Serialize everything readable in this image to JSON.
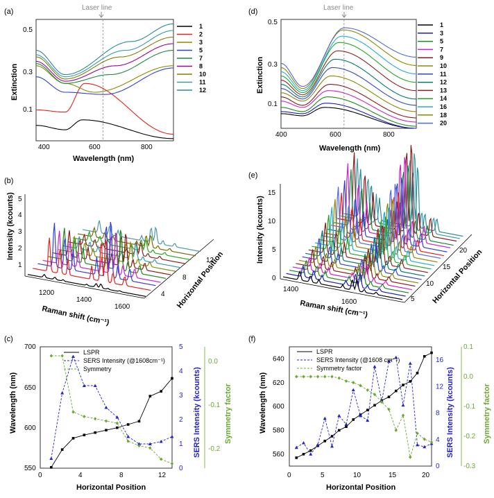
{
  "chart_data": [
    {
      "panel": "(a)",
      "type": "line",
      "xlabel": "Wavelength (nm)",
      "ylabel": "Extinction",
      "xticks": [
        "400",
        "600",
        "800"
      ],
      "yticks": [
        "0.1",
        "0.3",
        "0.5"
      ],
      "xlim": [
        380,
        900
      ],
      "ylim": [
        0,
        0.55
      ],
      "annotation": "Laser line",
      "laser_nm": 633,
      "legend": [
        "1",
        "2",
        "3",
        "5",
        "7",
        "8",
        "10",
        "11",
        "12"
      ],
      "colors": [
        "#000000",
        "#e8201c",
        "#8a8a00",
        "#2f3fd8",
        "#1a8a3a",
        "#9a009a",
        "#8a7a00",
        "#3a9aaa",
        "#2a8a9a"
      ],
      "dip_nm": [
        490,
        490,
        490,
        490,
        490,
        490,
        490,
        490,
        490
      ],
      "peak_nm": [
        555,
        565,
        600,
        640,
        660,
        680,
        700,
        720,
        740
      ],
      "peak": [
        0.095,
        0.26,
        0.22,
        0.21,
        0.3,
        0.34,
        0.38,
        0.41,
        0.45
      ],
      "dip": [
        0.05,
        0.13,
        0.26,
        0.22,
        0.26,
        0.27,
        0.28,
        0.29,
        0.3
      ],
      "start": [
        0.07,
        0.14,
        0.34,
        0.29,
        0.35,
        0.36,
        0.38,
        0.39,
        0.41
      ],
      "end": [
        0.01,
        0.03,
        0.34,
        0.33,
        0.41,
        0.44,
        0.47,
        0.5,
        0.53
      ]
    },
    {
      "panel": "(d)",
      "type": "line",
      "xlabel": "Wavelength (nm)",
      "ylabel": "Extinction",
      "xticks": [
        "400",
        "600",
        "800"
      ],
      "yticks": [
        "0.1",
        "0.3",
        "0.5"
      ],
      "xlim": [
        400,
        900
      ],
      "ylim": [
        0,
        0.52
      ],
      "annotation": "Laser line",
      "laser_nm": 633,
      "legend": [
        "1",
        "3",
        "5",
        "7",
        "9",
        "10",
        "11",
        "12",
        "13",
        "14",
        "16",
        "18",
        "20"
      ],
      "colors": [
        "#000000",
        "#1a1acc",
        "#1a8a1a",
        "#cc22cc",
        "#8a1a1a",
        "#8a8a00",
        "#3344cc",
        "#007a6a",
        "#8a2222",
        "#22aa22",
        "#22aadd",
        "#8a8a00",
        "#5566dd"
      ],
      "peak_nm": [
        560,
        565,
        570,
        575,
        580,
        585,
        590,
        600,
        610,
        615,
        625,
        630,
        635
      ],
      "peak": [
        0.1,
        0.12,
        0.15,
        0.18,
        0.21,
        0.25,
        0.29,
        0.33,
        0.37,
        0.41,
        0.44,
        0.47,
        0.48
      ],
      "dip": [
        0.06,
        0.07,
        0.08,
        0.1,
        0.11,
        0.13,
        0.14,
        0.15,
        0.16,
        0.17,
        0.18,
        0.19,
        0.2
      ],
      "start": [
        0.07,
        0.08,
        0.1,
        0.13,
        0.15,
        0.17,
        0.19,
        0.21,
        0.23,
        0.25,
        0.27,
        0.29,
        0.31
      ],
      "end": [
        0.0,
        0.0,
        0.01,
        0.03,
        0.05,
        0.08,
        0.11,
        0.14,
        0.18,
        0.22,
        0.26,
        0.3,
        0.34
      ]
    },
    {
      "panel": "(b)",
      "type": "line",
      "xlabel": "Raman shift (cm⁻¹)",
      "ylabel": "Intensity (kcounts)",
      "zlabel": "Horizontal Position",
      "xticks": [
        "1200",
        "1400",
        "1600"
      ],
      "yticks": [
        "1",
        "2",
        "3",
        "4",
        "5"
      ],
      "zticks": [
        "4",
        "8",
        "12"
      ],
      "series_count": 12,
      "colors": [
        "#000000",
        "#e8201c",
        "#2f3fd8",
        "#cc22cc",
        "#1a8a1a",
        "#8a1a1a",
        "#8a8a00",
        "#3a9aaa",
        "#8a2222",
        "#22aa22",
        "#7a6a00",
        "#4a9aaa"
      ],
      "peak_1608": [
        0.3,
        3.3,
        4.3,
        3.2,
        3.1,
        2.5,
        1.6,
        1.2,
        1.0,
        0.9,
        0.9,
        1.2
      ]
    },
    {
      "panel": "(e)",
      "type": "line",
      "xlabel": "Raman shift (cm⁻¹)",
      "ylabel": "Intensity (kcounts)",
      "zlabel": "Horizontal Position",
      "xticks": [
        "1400",
        "1600"
      ],
      "yticks": [
        "0",
        "5",
        "10",
        "15"
      ],
      "zticks": [
        "5",
        "10",
        "15",
        "20"
      ],
      "series_count": 20,
      "colors": [
        "#000000",
        "#1a1acc",
        "#1a8a1a",
        "#cc22cc",
        "#8a1a1a",
        "#8a8a00",
        "#3344cc",
        "#007a6a",
        "#8a2222",
        "#22aa22",
        "#22aadd",
        "#8a8a00",
        "#5566dd",
        "#e8201c",
        "#2f3fd8",
        "#cc22cc",
        "#1a8a3a",
        "#8a1a1a",
        "#3a9aaa",
        "#2a8a9a"
      ],
      "peak_1608": [
        2,
        2.5,
        3,
        3,
        4,
        4,
        5,
        6,
        7,
        8,
        9,
        10,
        12,
        10,
        12,
        15,
        13,
        16,
        14,
        11
      ]
    },
    {
      "panel": "(c)",
      "type": "line",
      "xlabel": "Horizontal Position",
      "ylabel": "Wavelength (nm)",
      "y2label": "SERS Intensity (kcounts)",
      "y3label": "Symmetry factor",
      "x": [
        1,
        2,
        3,
        4,
        5,
        6,
        7,
        8,
        9,
        10,
        11,
        12
      ],
      "xticks": [
        "0",
        "4",
        "8",
        "12"
      ],
      "ylim": [
        550,
        700
      ],
      "yticks": [
        "550",
        "600",
        "650",
        "700"
      ],
      "y2lim": [
        0,
        5
      ],
      "y2ticks": [
        "0",
        "1",
        "2",
        "3",
        "4",
        "5"
      ],
      "y3lim": [
        -0.25,
        0.02
      ],
      "y3ticks": [
        "-0.2",
        "-0.1",
        "0.0"
      ],
      "series": [
        {
          "name": "LSPR",
          "axis": "left",
          "color": "#000000",
          "marker": "square",
          "values": [
            551,
            573,
            587,
            591,
            594,
            597,
            600,
            604,
            608,
            639,
            645,
            661
          ]
        },
        {
          "name": "SERS Intensity (@1608cm⁻¹)",
          "axis": "right",
          "color": "#2222cc",
          "marker": "triangle",
          "values": [
            0.4,
            3.1,
            4.6,
            3.4,
            3.4,
            2.5,
            2.1,
            1.3,
            1.0,
            1.0,
            1.1,
            1.3
          ]
        },
        {
          "name": "Symmetry",
          "axis": "right2",
          "color": "#6aa830",
          "marker": "diamond",
          "values": [
            0.0,
            0.0,
            -0.125,
            -0.135,
            -0.14,
            -0.145,
            -0.15,
            -0.19,
            -0.2,
            -0.205,
            -0.23,
            -0.24
          ]
        }
      ]
    },
    {
      "panel": "(f)",
      "type": "line",
      "xlabel": "Horizontal Position",
      "ylabel": "Wavelength (nm)",
      "y2label": "SERS Intensity (kcounts)",
      "y3label": "Symmetry factor",
      "x": [
        1,
        2,
        3,
        4,
        5,
        6,
        7,
        8,
        9,
        10,
        11,
        12,
        13,
        14,
        15,
        16,
        17,
        18,
        19,
        20
      ],
      "xticks": [
        "0",
        "5",
        "10",
        "15",
        "20"
      ],
      "ylim": [
        550,
        650
      ],
      "yticks": [
        "560",
        "580",
        "600",
        "620",
        "640"
      ],
      "y2lim": [
        0,
        18
      ],
      "y2ticks": [
        "0",
        "4",
        "8",
        "12",
        "16"
      ],
      "y3lim": [
        -0.3,
        0.1
      ],
      "y3ticks": [
        "-0.3",
        "-0.2",
        "-0.1",
        "0.0",
        "0.1"
      ],
      "series": [
        {
          "name": "LSPR",
          "axis": "left",
          "color": "#000000",
          "marker": "square",
          "values": [
            557,
            560,
            563,
            567,
            571,
            575,
            580,
            583,
            589,
            593,
            597,
            601,
            605,
            608,
            613,
            618,
            621,
            628,
            642,
            645
          ]
        },
        {
          "name": "SERS Intensity (@1608 cm⁻¹)",
          "axis": "right",
          "color": "#2222cc",
          "marker": "triangle",
          "values": [
            2.8,
            3.5,
            1.8,
            3.2,
            7.2,
            3.0,
            7.6,
            6.3,
            11.5,
            7.6,
            6.9,
            15.0,
            9.8,
            15.8,
            16.4,
            9.2,
            15.5,
            3.2,
            2.9,
            3.4
          ]
        },
        {
          "name": "Symmetry factor",
          "axis": "right2",
          "color": "#6aa830",
          "marker": "diamond",
          "values": [
            0.0,
            0.0,
            0.0,
            0.0,
            0.0,
            0.0,
            -0.005,
            -0.015,
            -0.02,
            -0.03,
            -0.045,
            -0.06,
            -0.085,
            -0.11,
            -0.18,
            -0.13,
            -0.27,
            -0.19,
            -0.21,
            -0.22
          ]
        }
      ]
    }
  ]
}
